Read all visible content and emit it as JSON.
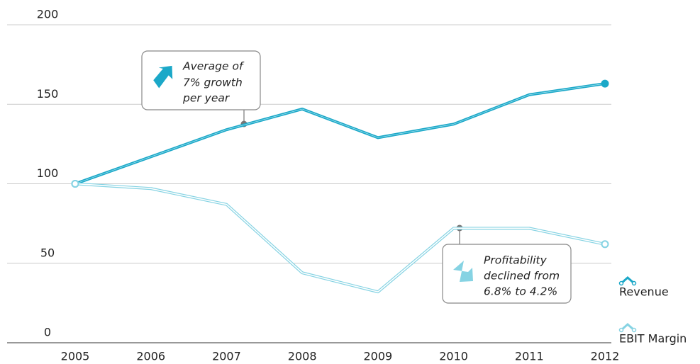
{
  "chart_data": {
    "type": "line",
    "categories": [
      "2005",
      "2006",
      "2007",
      "2008",
      "2009",
      "2010",
      "2011",
      "2012"
    ],
    "series": [
      {
        "name": "Revenue",
        "color": "#1ba8c8",
        "values": [
          100,
          117,
          134,
          147,
          129,
          137.5,
          156,
          163
        ]
      },
      {
        "name": "EBIT Margin",
        "color": "#86d3e3",
        "values": [
          100,
          97,
          87,
          44,
          32,
          72,
          72,
          62
        ]
      }
    ],
    "ylim": [
      0,
      200
    ],
    "yticks": [
      0,
      50,
      100,
      150,
      200
    ],
    "grid": true,
    "legend": "bottom-right",
    "annotations": [
      {
        "lines": [
          "Average of",
          "7% growth",
          "per year"
        ]
      },
      {
        "lines": [
          "Profitability",
          "declined from",
          "6.8% to 4.2%"
        ]
      }
    ]
  }
}
